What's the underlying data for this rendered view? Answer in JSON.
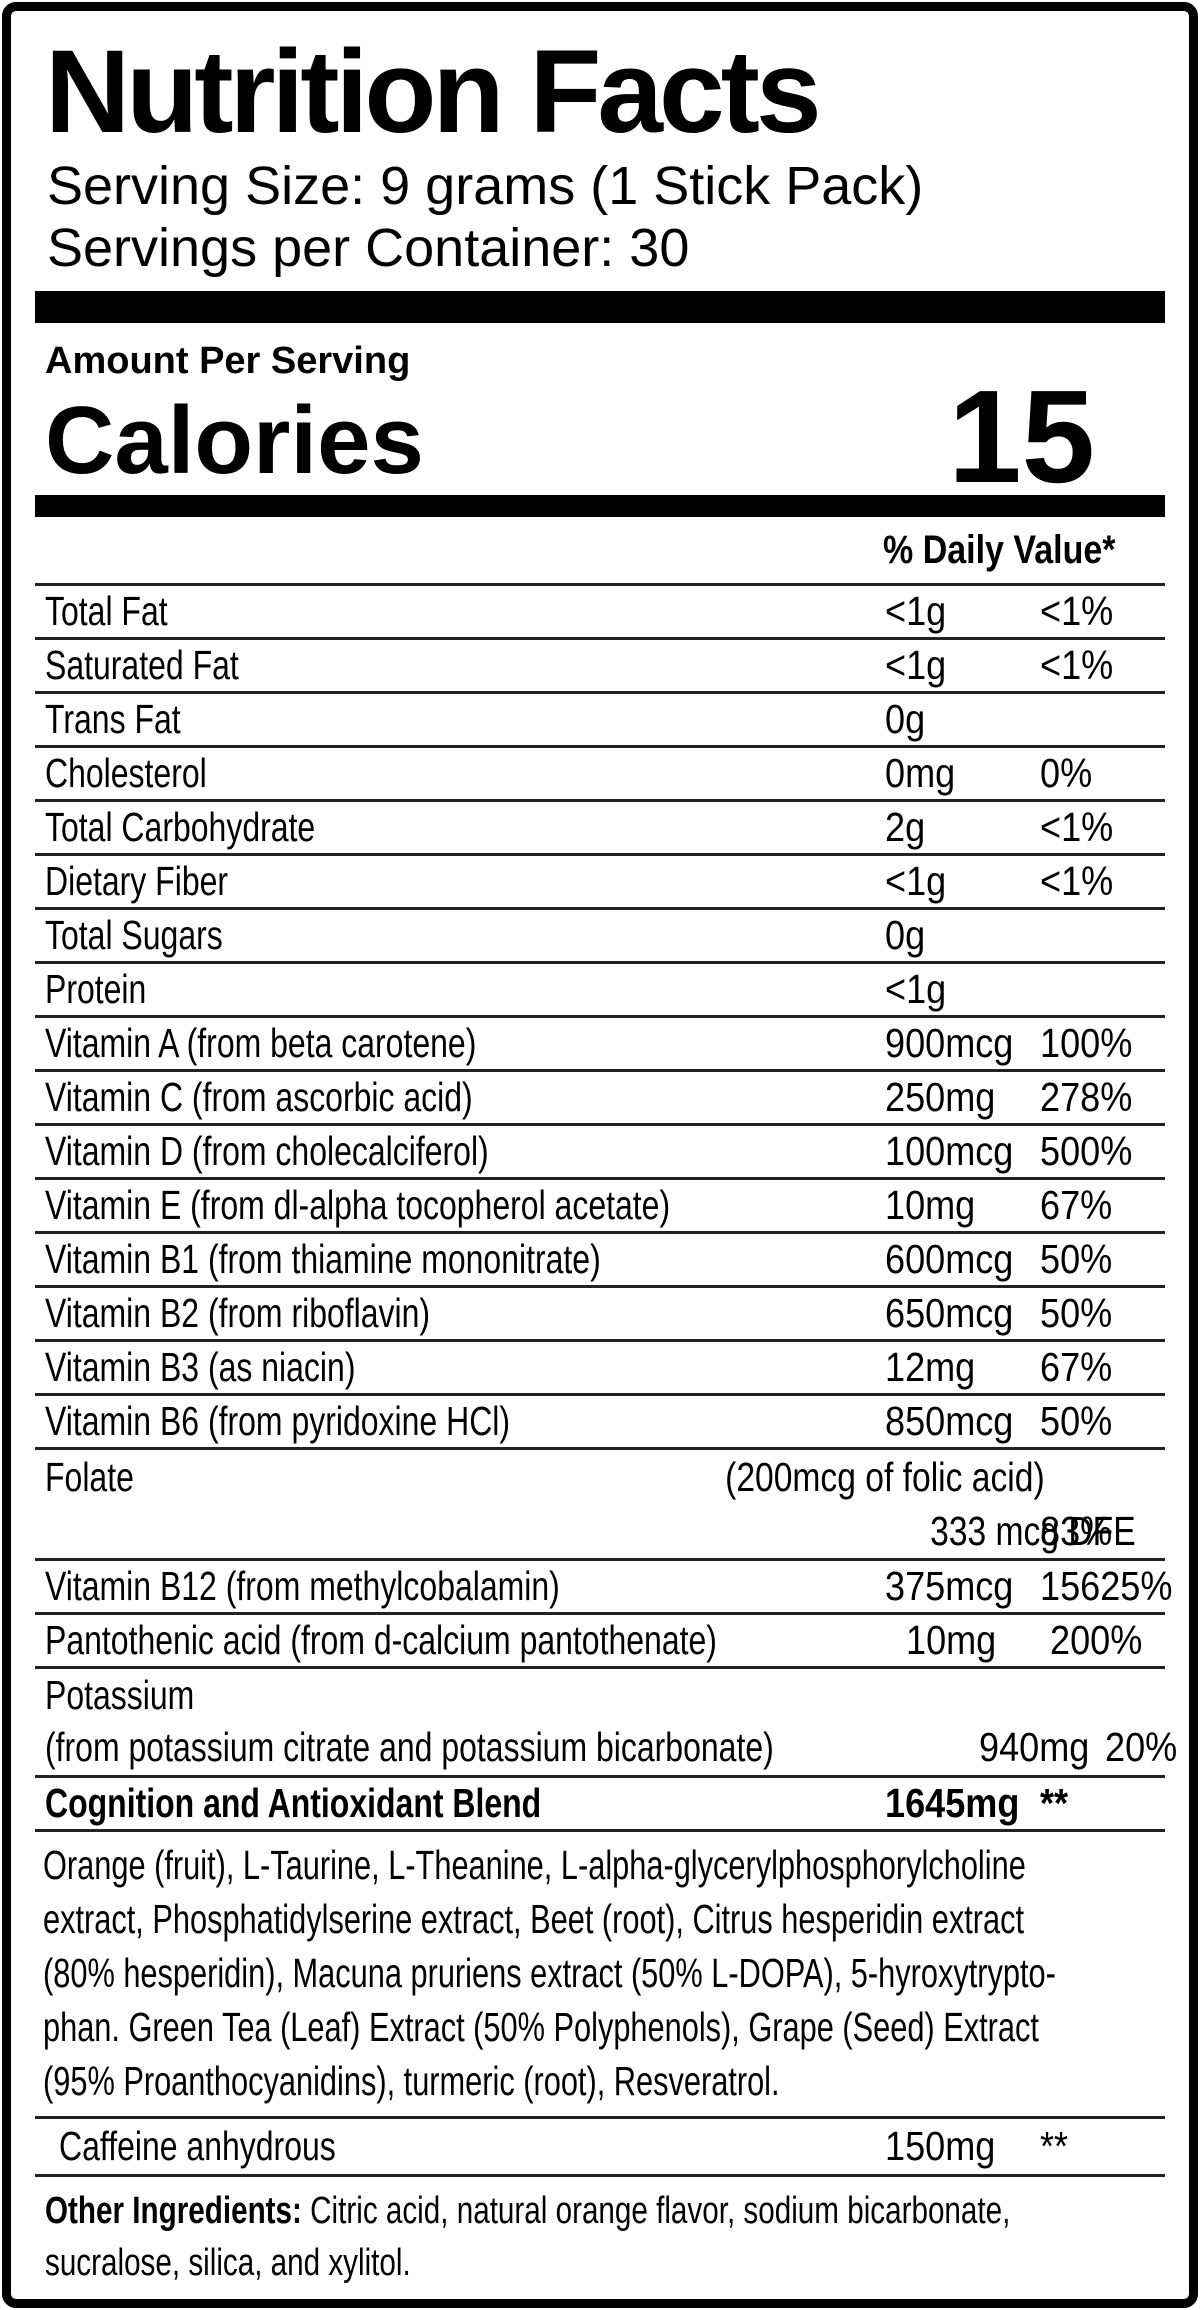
{
  "header": {
    "title": "Nutrition Facts",
    "serving_size": "Serving Size: 9 grams (1 Stick Pack)",
    "servings_per_container": "Servings per Container: 30"
  },
  "calories": {
    "amount_per_serving": "Amount Per Serving",
    "label": "Calories",
    "value": "15"
  },
  "daily_value_header": "% Daily Value*",
  "rows": [
    {
      "label": "Total Fat",
      "amount": "<1g",
      "dv": "<1%"
    },
    {
      "label": "Saturated Fat",
      "amount": "<1g",
      "dv": "<1%"
    },
    {
      "label": "Trans Fat",
      "amount": "0g",
      "dv": ""
    },
    {
      "label": "Cholesterol",
      "amount": "0mg",
      "dv": "0%"
    },
    {
      "label": "Total Carbohydrate",
      "amount": "2g",
      "dv": "<1%"
    },
    {
      "label": "Dietary Fiber",
      "amount": "<1g",
      "dv": "<1%"
    },
    {
      "label": "Total Sugars",
      "amount": "0g",
      "dv": ""
    },
    {
      "label": "Protein",
      "amount": "<1g",
      "dv": ""
    },
    {
      "label": "Vitamin A (from beta carotene)",
      "amount": "900mcg",
      "dv": "100%"
    },
    {
      "label": "Vitamin C (from ascorbic acid)",
      "amount": "250mg",
      "dv": "278%"
    },
    {
      "label": "Vitamin D (from cholecalciferol)",
      "amount": "100mcg",
      "dv": "500%"
    },
    {
      "label": "Vitamin E (from dl-alpha tocopherol acetate)",
      "amount": "10mg",
      "dv": "67%"
    },
    {
      "label": "Vitamin B1 (from thiamine mononitrate)",
      "amount": "600mcg",
      "dv": "50%"
    },
    {
      "label": "Vitamin B2 (from riboflavin)",
      "amount": "650mcg",
      "dv": "50%"
    },
    {
      "label": "Vitamin B3 (as niacin)",
      "amount": "12mg",
      "dv": "67%"
    },
    {
      "label": "Vitamin B6 (from pyridoxine HCl)",
      "amount": "850mcg",
      "dv": "50%"
    },
    {
      "label": "Vitamin B12 (from methylcobalamin)",
      "amount": "375mcg",
      "dv": "15625%"
    },
    {
      "label": "Pantothenic acid (from d-calcium pantothenate)",
      "amount": "10mg",
      "dv": "200%"
    }
  ],
  "folate": {
    "label": "Folate",
    "note": "(200mcg of folic acid)",
    "amount": "333 mcg DFE",
    "dv": "83%"
  },
  "potassium": {
    "label": "Potassium",
    "sub_label": "(from potassium citrate and potassium bicarbonate)",
    "amount": "940mg",
    "dv": "20%"
  },
  "blend": {
    "label": "Cognition and Antioxidant Blend",
    "amount": "1645mg",
    "dv": "**",
    "ingredients": "Orange (fruit), L-Taurine, L-Theanine, L-alpha-glycerylphosphorylcholine\nextract, Phosphatidylserine extract, Beet (root), Citrus hesperidin extract\n(80% hesperidin), Macuna pruriens extract (50% L-DOPA), 5-hyroxytrypto-\nphan. Green Tea (Leaf) Extract (50% Polyphenols), Grape (Seed) Extract\n(95% Proanthocyanidins), turmeric (root), Resveratrol."
  },
  "caffeine": {
    "label": "Caffeine anhydrous",
    "amount": "150mg",
    "dv": "**"
  },
  "other_ingredients": {
    "label": "Other Ingredients:",
    "line1": " Citric acid, natural orange flavor, sodium bicarbonate,",
    "line2": "sucralose, silica, and xylitol."
  },
  "colors": {
    "ink": "#000000",
    "background": "#ffffff"
  }
}
